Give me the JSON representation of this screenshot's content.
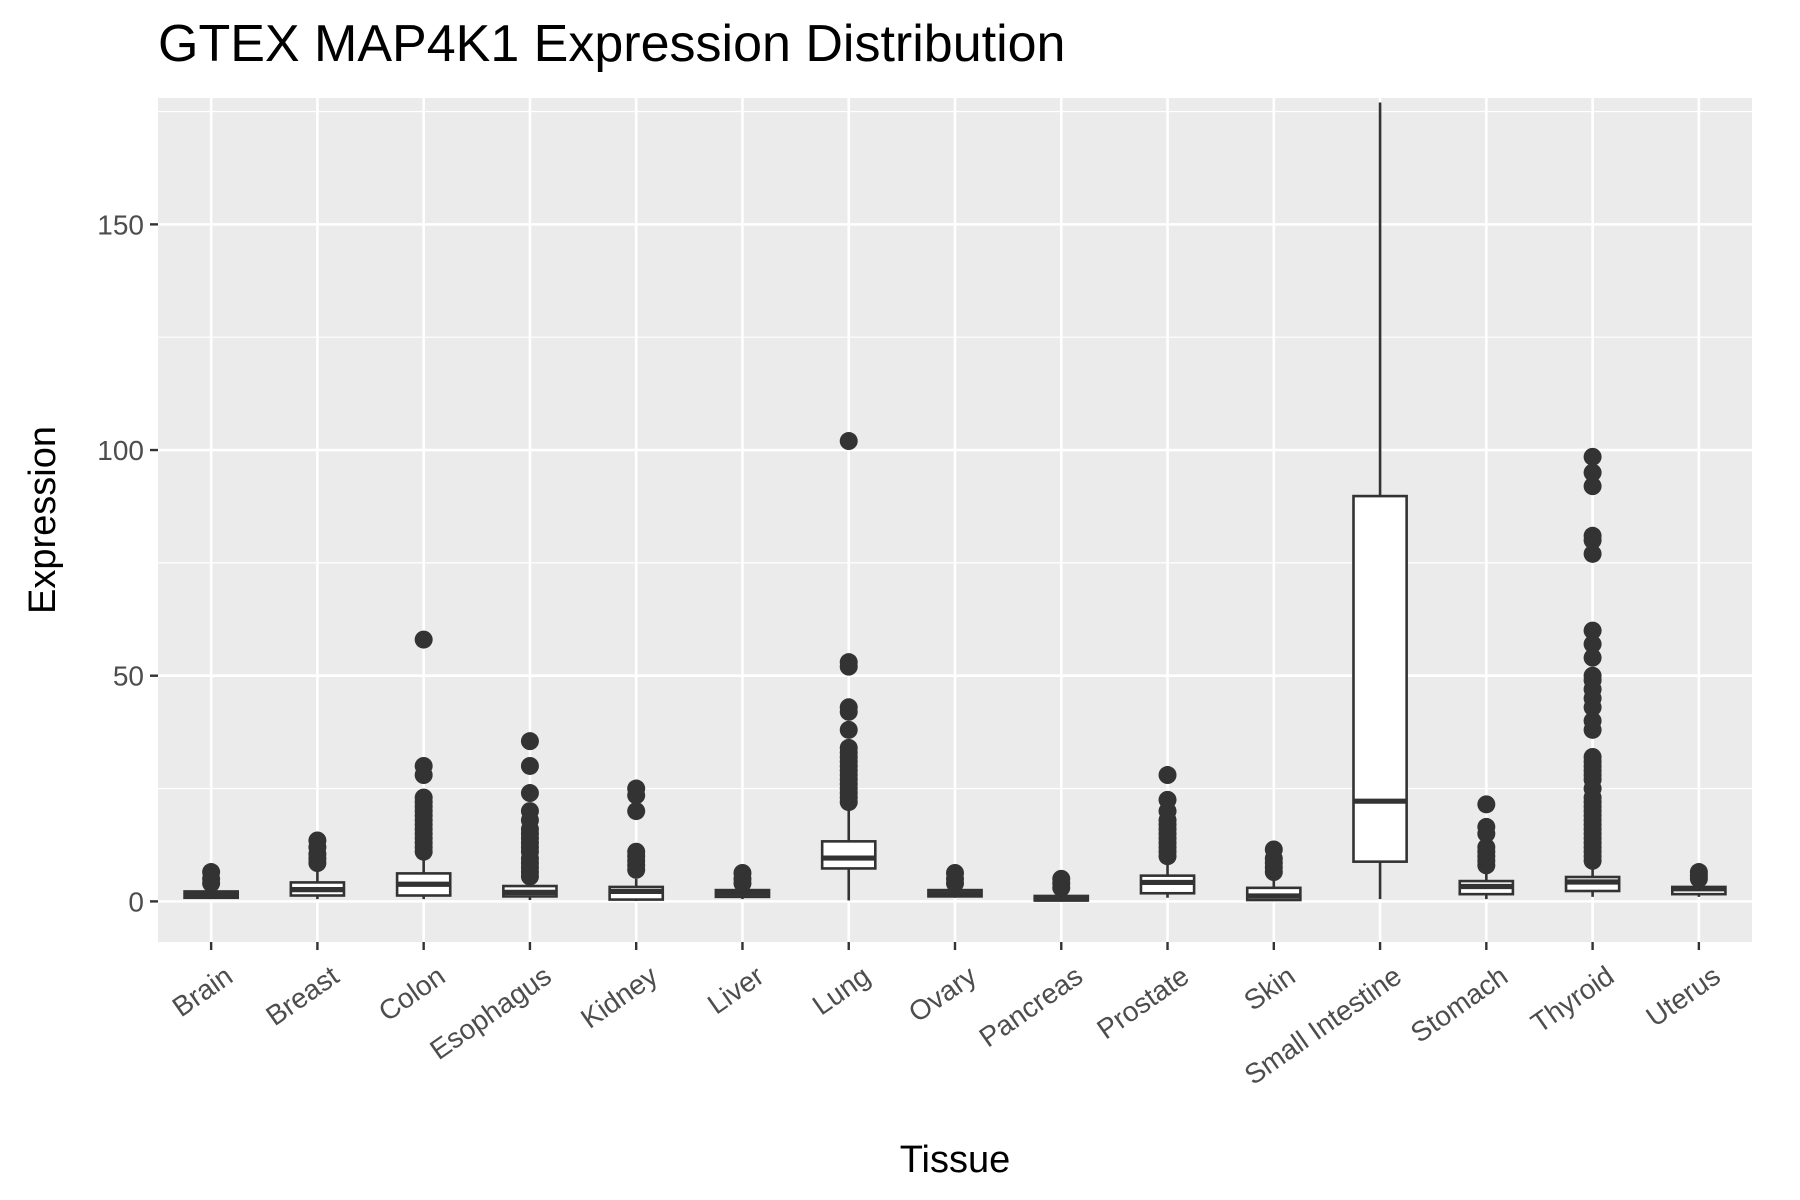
{
  "chart_data": {
    "type": "box",
    "title": "GTEX MAP4K1 Expression Distribution",
    "xlabel": "Tissue",
    "ylabel": "Expression",
    "ylim": [
      -9,
      178
    ],
    "yticks": [
      0,
      50,
      100,
      150
    ],
    "grid": true,
    "legend": "none",
    "colors": {
      "panel": "#ebebeb",
      "grid": "#ffffff",
      "box_fill": "#ffffff",
      "box_stroke": "#333333",
      "outlier": "#333333",
      "tick_text": "#4d4d4d"
    },
    "categories": [
      "Brain",
      "Breast",
      "Colon",
      "Esophagus",
      "Kidney",
      "Liver",
      "Lung",
      "Ovary",
      "Pancreas",
      "Prostate",
      "Skin",
      "Small Intestine",
      "Stomach",
      "Thyroid",
      "Uterus"
    ],
    "boxes": [
      {
        "category": "Brain",
        "min": 0.5,
        "q1": 0.8,
        "median": 1.4,
        "q3": 2.2,
        "max": 3.5,
        "outliers": [
          4,
          5,
          6.5
        ]
      },
      {
        "category": "Breast",
        "min": 0.5,
        "q1": 1.3,
        "median": 2.6,
        "q3": 4.2,
        "max": 7,
        "outliers": [
          8.5,
          9.5,
          10.5,
          12,
          13.5
        ]
      },
      {
        "category": "Colon",
        "min": 0.5,
        "q1": 1.3,
        "median": 3.8,
        "q3": 6.2,
        "max": 10,
        "outliers": [
          11,
          12,
          13,
          14,
          15,
          16,
          17,
          18,
          19,
          20,
          21,
          22,
          23,
          28,
          30,
          58
        ]
      },
      {
        "category": "Esophagus",
        "min": 0.3,
        "q1": 1.1,
        "median": 2,
        "q3": 3.4,
        "max": 4.5,
        "outliers": [
          5.5,
          6.5,
          7.5,
          8.5,
          9.5,
          11,
          12,
          13,
          14,
          15,
          16,
          18,
          20,
          24,
          30,
          35.5
        ]
      },
      {
        "category": "Kidney",
        "min": 0.1,
        "q1": 0.4,
        "median": 2.2,
        "q3": 3.2,
        "max": 5,
        "outliers": [
          7,
          8,
          9,
          10,
          11,
          20,
          23.5,
          25
        ]
      },
      {
        "category": "Liver",
        "min": 0.5,
        "q1": 1,
        "median": 1.8,
        "q3": 2.5,
        "max": 3.5,
        "outliers": [
          4,
          5,
          6.3
        ]
      },
      {
        "category": "Lung",
        "min": 0.2,
        "q1": 7.3,
        "median": 9.6,
        "q3": 13.3,
        "max": 21,
        "outliers": [
          22,
          23,
          24,
          25,
          26,
          27,
          28,
          29,
          30,
          31,
          32,
          33,
          34,
          38,
          42,
          43,
          52,
          53,
          102
        ]
      },
      {
        "category": "Ovary",
        "min": 0.8,
        "q1": 1.1,
        "median": 1.7,
        "q3": 2.5,
        "max": 3.5,
        "outliers": [
          4,
          5,
          6.3
        ]
      },
      {
        "category": "Pancreas",
        "min": 0.05,
        "q1": 0.2,
        "median": 0.5,
        "q3": 1.2,
        "max": 2,
        "outliers": [
          3,
          4,
          5
        ]
      },
      {
        "category": "Prostate",
        "min": 0.8,
        "q1": 1.8,
        "median": 4.2,
        "q3": 5.7,
        "max": 9,
        "outliers": [
          10,
          11,
          12,
          13,
          14,
          15,
          16,
          17,
          18,
          20,
          22.5,
          28
        ]
      },
      {
        "category": "Skin",
        "min": 0.1,
        "q1": 0.3,
        "median": 1.2,
        "q3": 3,
        "max": 5.5,
        "outliers": [
          6.5,
          7.5,
          8.5,
          9.5,
          11.5
        ]
      },
      {
        "category": "Small Intestine",
        "min": 0.5,
        "q1": 8.8,
        "median": 22.2,
        "q3": 89.8,
        "max": 177,
        "outliers": []
      },
      {
        "category": "Stomach",
        "min": 0.5,
        "q1": 1.6,
        "median": 3.3,
        "q3": 4.5,
        "max": 7,
        "outliers": [
          8,
          9,
          10,
          11,
          12,
          15,
          16.5,
          21.5
        ]
      },
      {
        "category": "Thyroid",
        "min": 1,
        "q1": 2.3,
        "median": 4.3,
        "q3": 5.4,
        "max": 8,
        "outliers": [
          9,
          10,
          11,
          12,
          13,
          14,
          15,
          16,
          17,
          18,
          19,
          20,
          21,
          22,
          23,
          25,
          27,
          28,
          29,
          30,
          31,
          32,
          38,
          40,
          43,
          45,
          47,
          49,
          50,
          54,
          57,
          60,
          77,
          80,
          81,
          92,
          95,
          98.5
        ]
      },
      {
        "category": "Uterus",
        "min": 1,
        "q1": 1.6,
        "median": 2.8,
        "q3": 3.2,
        "max": 4.2,
        "outliers": [
          5,
          5.7,
          6.5
        ]
      }
    ]
  }
}
